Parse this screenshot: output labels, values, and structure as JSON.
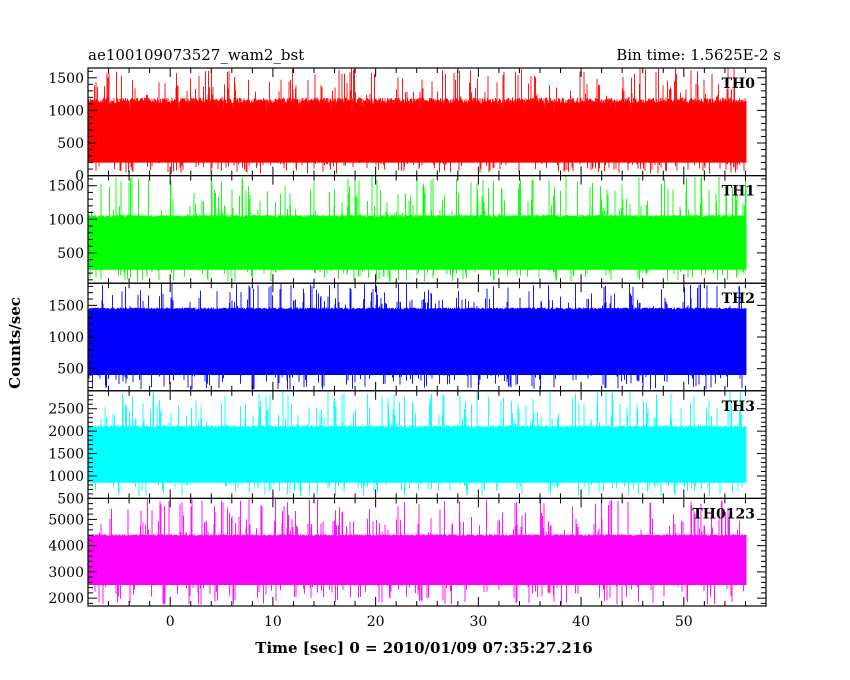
{
  "header": {
    "title": "ae100109073527_wam2_bst",
    "bin_time": "Bin time: 1.5625E-2 s"
  },
  "chart_data": {
    "type": "line",
    "xlabel": "Time [sec] 0 = 2010/01/09 07:35:27.216",
    "ylabel": "Counts/sec",
    "xlim": [
      -8,
      58
    ],
    "x_range": [
      -7.9,
      56.1
    ],
    "x_ticks": [
      0,
      10,
      20,
      30,
      40,
      50
    ],
    "x_minor_step": 2,
    "panels": [
      {
        "name": "TH0",
        "color": "#ff0000",
        "ylim": [
          0,
          1650
        ],
        "yticks": [
          0,
          500,
          1000,
          1500
        ],
        "minor_step": 100,
        "base_low": 200,
        "base_high": 1150,
        "spike_min": 1000,
        "spike_max": 1650,
        "dip_min": 30,
        "dip_max": 200
      },
      {
        "name": "TH1",
        "color": "#00ff00",
        "ylim": [
          50,
          1650
        ],
        "yticks": [
          500,
          1000,
          1500
        ],
        "minor_step": 100,
        "base_low": 250,
        "base_high": 1050,
        "spike_min": 1000,
        "spike_max": 1650,
        "dip_min": 70,
        "dip_max": 250
      },
      {
        "name": "TH2",
        "color": "#0000ff",
        "ylim": [
          150,
          1850
        ],
        "yticks": [
          500,
          1000,
          1500
        ],
        "minor_step": 100,
        "base_low": 400,
        "base_high": 1450,
        "spike_min": 1400,
        "spike_max": 1850,
        "dip_min": 170,
        "dip_max": 400
      },
      {
        "name": "TH3",
        "color": "#00ffff",
        "ylim": [
          500,
          2900
        ],
        "yticks": [
          500,
          1000,
          1500,
          2000,
          2500
        ],
        "minor_step": 100,
        "base_low": 850,
        "base_high": 2100,
        "spike_min": 2000,
        "spike_max": 2900,
        "dip_min": 550,
        "dip_max": 850
      },
      {
        "name": "TH0123",
        "color": "#ff00ff",
        "ylim": [
          1700,
          5800
        ],
        "yticks": [
          2000,
          3000,
          4000,
          5000
        ],
        "minor_step": 200,
        "base_low": 2500,
        "base_high": 4400,
        "spike_min": 4300,
        "spike_max": 5800,
        "dip_min": 1750,
        "dip_max": 2500
      }
    ]
  }
}
